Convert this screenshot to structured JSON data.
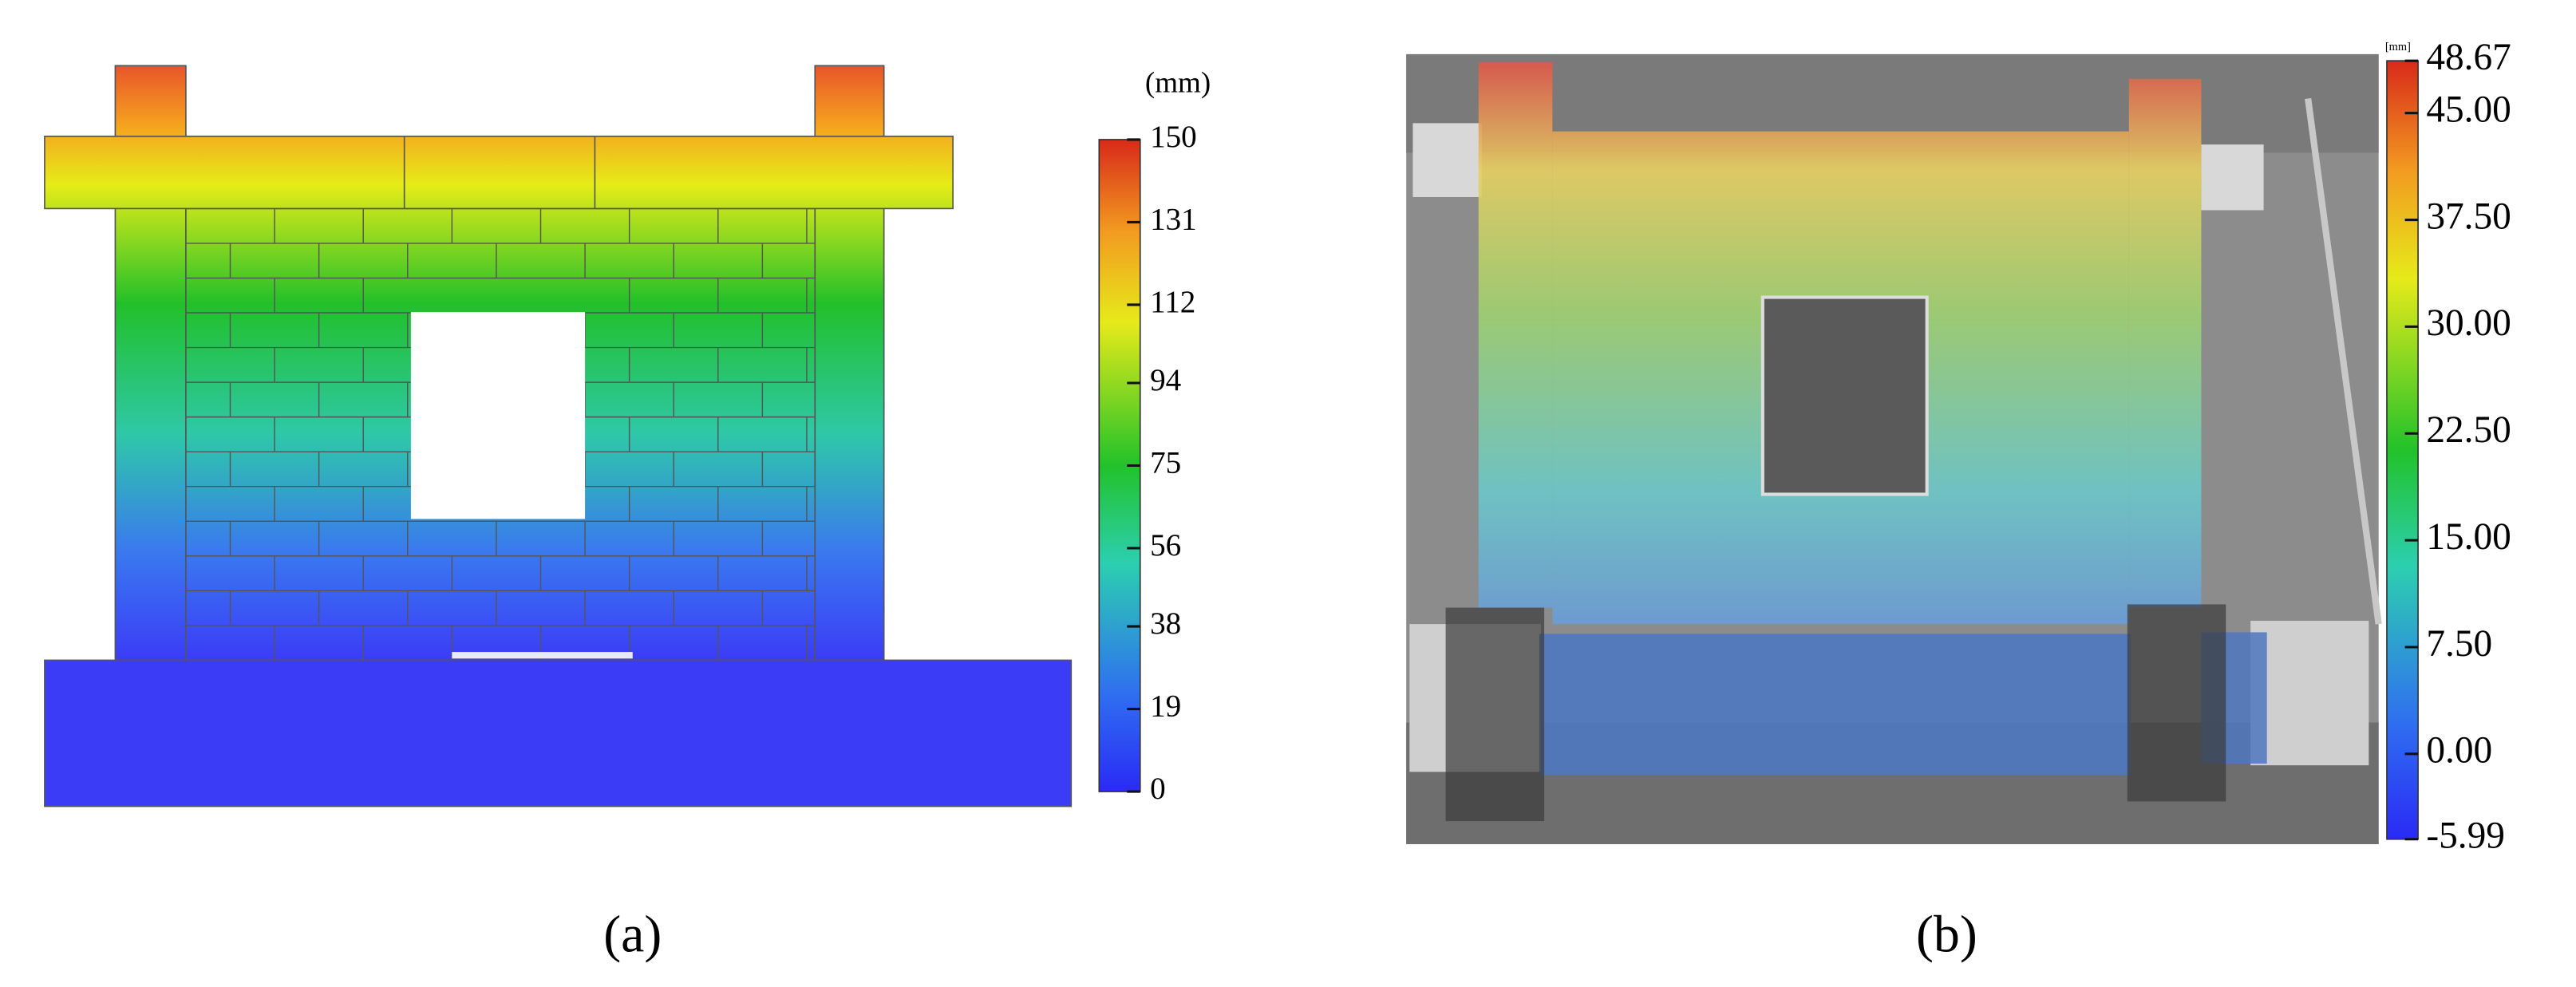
{
  "panels": [
    {
      "caption": "(a)",
      "colorbar": {
        "unit": "(mm)",
        "range": [
          0,
          150
        ],
        "ticks": [
          0,
          19,
          38,
          56,
          75,
          94,
          112,
          131,
          150
        ]
      }
    },
    {
      "caption": "(b)",
      "colorbar": {
        "unit": "[mm]",
        "range": [
          -5.99,
          48.67
        ],
        "ticks": [
          -5.99,
          {
            "value": 0,
            "label": "0.00"
          },
          {
            "value": 7.5,
            "label": "7.50"
          },
          {
            "value": 15,
            "label": "15.00"
          },
          {
            "value": 22.5,
            "label": "22.50"
          },
          {
            "value": 30,
            "label": "30.00"
          },
          {
            "value": 37.5,
            "label": "37.50"
          },
          {
            "value": 45,
            "label": "45.00"
          },
          48.67
        ]
      }
    }
  ]
}
